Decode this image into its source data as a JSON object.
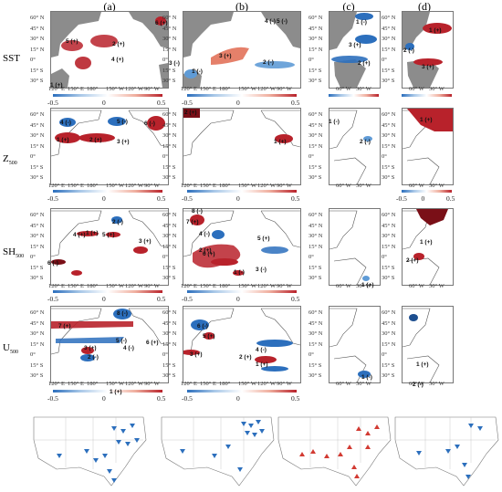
{
  "columns": [
    "(a)",
    "(b)",
    "(c)",
    "(d)"
  ],
  "rows": [
    {
      "label": "SST"
    },
    {
      "label": "Z",
      "sub": "500"
    },
    {
      "label": "SH",
      "sub": "500"
    },
    {
      "label": "U",
      "sub": "500"
    }
  ],
  "lat_ticks": [
    "60° N",
    "45° N",
    "30° N",
    "15° N",
    "0°",
    "15° S",
    "30° S"
  ],
  "lon_ticks_pacific": [
    "120° E",
    "150° E",
    "180°",
    "150° W",
    "120° W",
    "90° W"
  ],
  "lon_ticks_atlantic": [
    "60° W",
    "30° W"
  ],
  "colorbar_ticks": [
    "-0.5",
    "0",
    "0.5"
  ],
  "colors": {
    "land": "#8c8c8c",
    "positive": "#b8222b",
    "negative": "#2c6fbd",
    "coast": "#555555"
  },
  "region_labels": {
    "sst_a": [
      "1 (+)",
      "2 (+)",
      "3 (-)",
      "4 (+)",
      "5 (+)",
      "6 (+)"
    ],
    "sst_b": [
      "1 (-)",
      "2 (-)",
      "3 (+)",
      "4 (-)",
      "5 (-)"
    ],
    "sst_c": [
      "1 (-)",
      "2 (+)",
      "3 (+)"
    ],
    "sst_d": [
      "1 (+)",
      "2 (-)",
      "3 (+)"
    ],
    "z_a": [
      "1 (+)",
      "2 (+)",
      "3 (+)",
      "4 (-)",
      "5 (-)",
      "6 (-)"
    ],
    "z_b": [
      "1 (+)",
      "2 (+)"
    ],
    "z_c": [
      "1 (-)",
      "2 (-)"
    ],
    "z_d": [
      "1 (+)"
    ],
    "sh_a": [
      "1 (+)",
      "2 (-)",
      "3 (+)",
      "4 (+)",
      "5 (+)",
      "6 (-)"
    ],
    "sh_b": [
      "1 (-)",
      "2 (+)",
      "3 (-)",
      "4 (-)",
      "5 (+)",
      "6 (+)",
      "7 (+)",
      "8 (-)"
    ],
    "sh_c": [
      "1 (+)"
    ],
    "sh_d": [
      "1 (+)",
      "2 (+)"
    ],
    "u_a": [
      "1 (+)",
      "2 (-)",
      "3 (+)",
      "4 (-)",
      "5 (-)",
      "6 (+)",
      "7 (+)",
      "8 (-)"
    ],
    "u_b": [
      "1 (+)",
      "2 (+)",
      "3 (+)",
      "4 (-)",
      "5 (+)",
      "6 (-)"
    ],
    "u_c": [
      "1 (-)"
    ],
    "u_d": [
      "1 (+)",
      "2 (-)"
    ]
  }
}
